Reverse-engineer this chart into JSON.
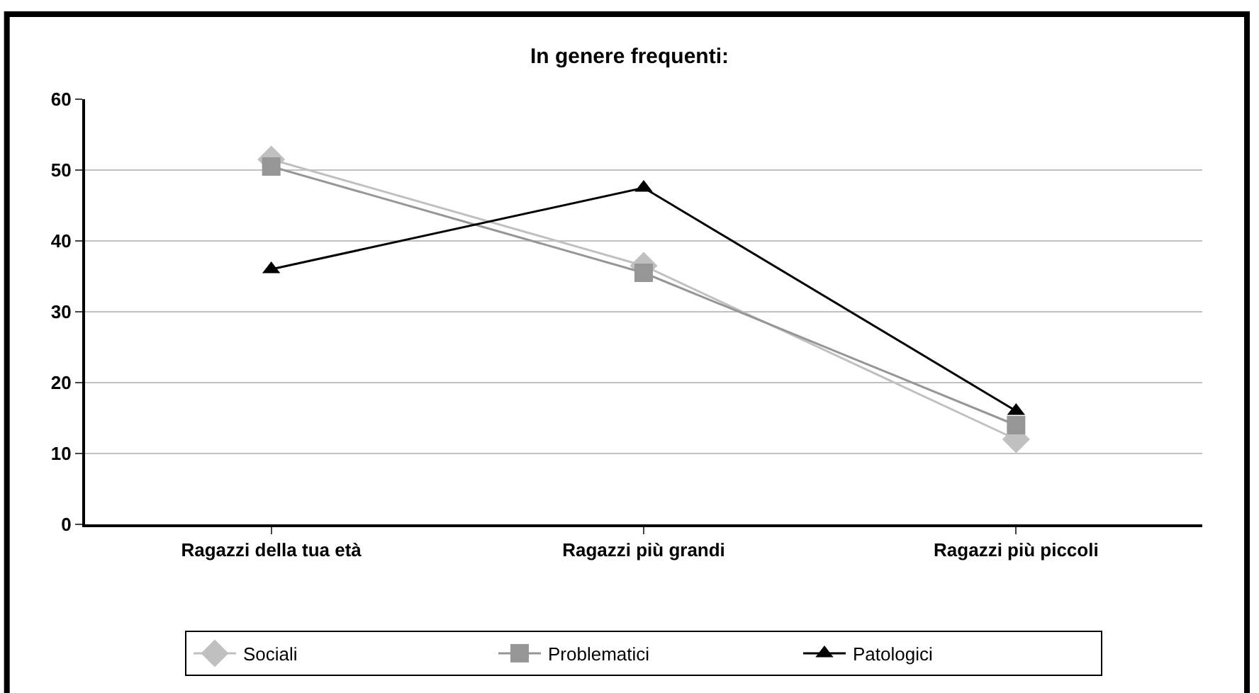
{
  "chart_data": {
    "type": "line",
    "title": "In genere frequenti:",
    "categories": [
      "Ragazzi della tua età",
      "Ragazzi più grandi",
      "Ragazzi più piccoli"
    ],
    "series": [
      {
        "name": "Sociali",
        "color": "#c0c0c0",
        "marker": "diamond",
        "values": [
          51.5,
          36.5,
          12
        ]
      },
      {
        "name": "Problematici",
        "color": "#969696",
        "marker": "square",
        "values": [
          50.5,
          35.5,
          14
        ]
      },
      {
        "name": "Patologici",
        "color": "#000000",
        "marker": "triangle",
        "values": [
          36,
          47.5,
          16
        ]
      }
    ],
    "ylim": [
      0,
      60
    ],
    "yticks": [
      0,
      10,
      20,
      30,
      40,
      50,
      60
    ],
    "grid": "y",
    "legend": "bottom",
    "line_style": "solid"
  }
}
